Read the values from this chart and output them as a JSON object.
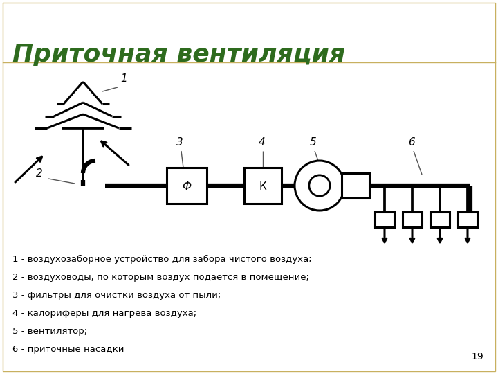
{
  "title": "Приточная вентиляция",
  "title_color": "#2e6b1e",
  "title_fontsize": 26,
  "bg_color": "#ffffff",
  "border_color_outer": "#c8b060",
  "border_color_inner": "#8b8b00",
  "description_lines": [
    "1 - воздухозаборное устройство для забора чистого воздуха;",
    "2 - воздуховоды, по которым воздух подается в помещение;",
    "3 - фильтры для очистки воздуха от пыли;",
    "4 - калориферы для нагрева воздуха;",
    "5 - вентилятор;",
    "6 - приточные насадки"
  ],
  "page_number": "19",
  "line_color": "#000000",
  "lw": 2.2,
  "pipe_lw": 4.5
}
